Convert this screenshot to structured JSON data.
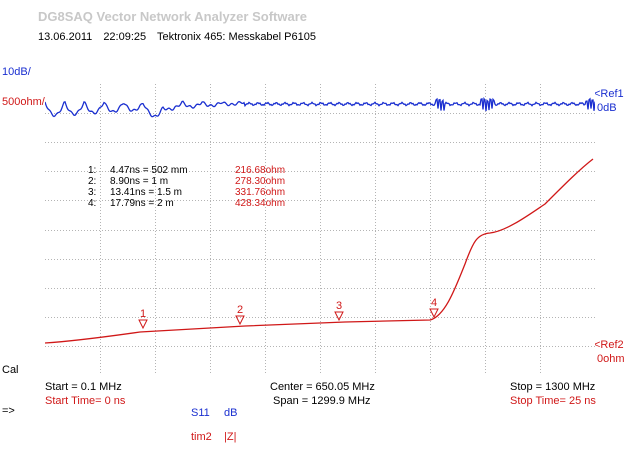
{
  "app": {
    "title": "DG8SAQ Vector Network Analyzer Software",
    "date": "13.06.2011",
    "time": "22:09:25",
    "description": "Tektronix 465: Messkabel P6105"
  },
  "left_axis": {
    "scale_top": "10dB/",
    "scale_bottom": "500ohm/",
    "cal_label": "Cal",
    "arrow": "=>"
  },
  "right_axis": {
    "ref1_label": "<Ref1",
    "ref1_value": "0dB",
    "ref2_label": "<Ref2",
    "ref2_value": "0ohm"
  },
  "freq": {
    "start": "Start = 0.1 MHz",
    "start_time": "Start Time= 0 ns",
    "center": "Center = 650.05 MHz",
    "span": "Span = 1299.9 MHz",
    "stop": "Stop = 1300 MHz",
    "stop_time": "Stop Time= 25 ns"
  },
  "traces_legend": {
    "t1_name": "S11",
    "t1_unit": "dB",
    "t2_name": "tim2",
    "t2_unit": "|Z|"
  },
  "markers": [
    {
      "idx": "1:",
      "desc": "4.47ns = 502 mm",
      "value": "216.68ohm",
      "label": "1"
    },
    {
      "idx": "2:",
      "desc": "8.90ns = 1 m",
      "value": "278.30ohm",
      "label": "2"
    },
    {
      "idx": "3:",
      "desc": "13.41ns = 1.5 m",
      "value": "331.76ohm",
      "label": "3"
    },
    {
      "idx": "4:",
      "desc": "17.79ns = 2 m",
      "value": "428.34ohm",
      "label": "4"
    }
  ],
  "colors": {
    "trace1": "#1a2fd0",
    "trace2": "#d01818",
    "grid": "#b4b4b4"
  }
}
